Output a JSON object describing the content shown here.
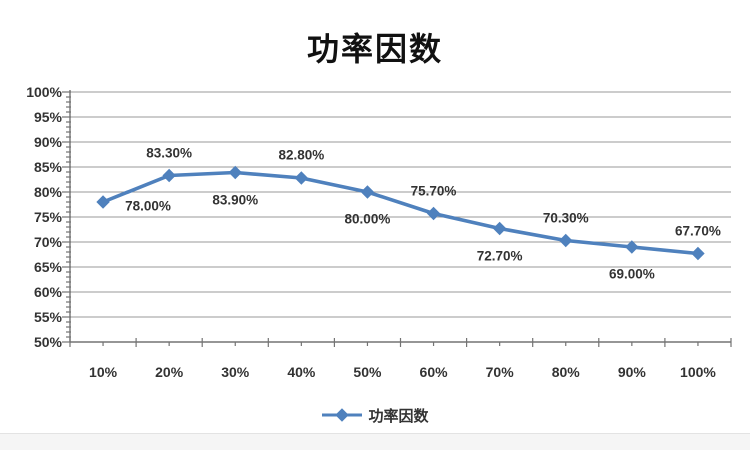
{
  "chart_title": "功率因数",
  "legend": {
    "label": "功率因数"
  },
  "chart_data": {
    "type": "line",
    "title": "功率因数",
    "x_categories": [
      "10%",
      "20%",
      "30%",
      "40%",
      "50%",
      "60%",
      "70%",
      "80%",
      "90%",
      "100%"
    ],
    "series": [
      {
        "name": "功率因数",
        "values": [
          78.0,
          83.3,
          83.9,
          82.8,
          80.0,
          75.7,
          72.7,
          70.3,
          69.0,
          67.7
        ]
      }
    ],
    "data_labels": [
      "78.00%",
      "83.30%",
      "83.90%",
      "82.80%",
      "80.00%",
      "75.70%",
      "72.70%",
      "70.30%",
      "69.00%",
      "67.70%"
    ],
    "data_label_placement": [
      "right",
      "above",
      "below",
      "above",
      "below",
      "above",
      "below",
      "above",
      "below",
      "above"
    ],
    "y_ticks": [
      "100%",
      "95%",
      "90%",
      "85%",
      "80%",
      "75%",
      "70%",
      "65%",
      "60%",
      "55%",
      "50%"
    ],
    "ylim": [
      50,
      100
    ],
    "y_major_step": 5,
    "y_minor_step": 1,
    "grid": true,
    "legend_position": "bottom",
    "xlabel": "",
    "ylabel": "",
    "colors": {
      "series": "#4F81BD",
      "grid": "#999999",
      "axis": "#737373",
      "text": "#333333"
    }
  }
}
